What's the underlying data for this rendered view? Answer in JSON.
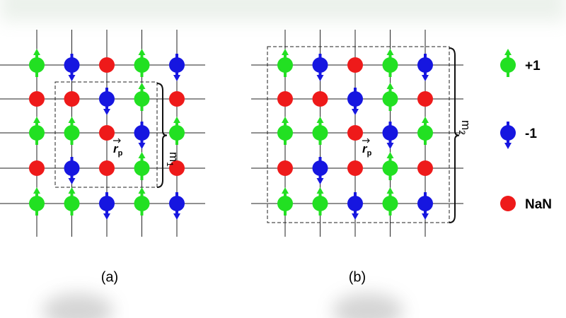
{
  "lattices": [
    {
      "caption": "(a)",
      "vector": "r",
      "vector_sub": "p",
      "size": "m",
      "size_sub": "1",
      "rows": [
        [
          "+1",
          "-1",
          "NaN",
          "+1",
          "-1"
        ],
        [
          "NaN",
          "NaN",
          "-1",
          "+1",
          "NaN"
        ],
        [
          "+1",
          "+1",
          "NaN",
          "-1",
          "+1"
        ],
        [
          "NaN",
          "-1",
          "NaN",
          "+1",
          "NaN"
        ],
        [
          "+1",
          "+1",
          "-1",
          "+1",
          "-1"
        ]
      ]
    },
    {
      "caption": "(b)",
      "vector": "r",
      "vector_sub": "p",
      "size": "m",
      "size_sub": "2",
      "rows": [
        [
          "+1",
          "-1",
          "NaN",
          "+1",
          "-1"
        ],
        [
          "NaN",
          "NaN",
          "-1",
          "+1",
          "NaN"
        ],
        [
          "+1",
          "+1",
          "NaN",
          "-1",
          "+1"
        ],
        [
          "NaN",
          "-1",
          "NaN",
          "+1",
          "NaN"
        ],
        [
          "+1",
          "+1",
          "-1",
          "+1",
          "-1"
        ]
      ]
    }
  ],
  "legend": [
    {
      "label": "+1",
      "color": "#22e022",
      "arrow": "up"
    },
    {
      "label": "-1",
      "color": "#1616e0",
      "arrow": "down"
    },
    {
      "label": "NaN",
      "color": "#ee1a1a",
      "arrow": "none"
    }
  ]
}
